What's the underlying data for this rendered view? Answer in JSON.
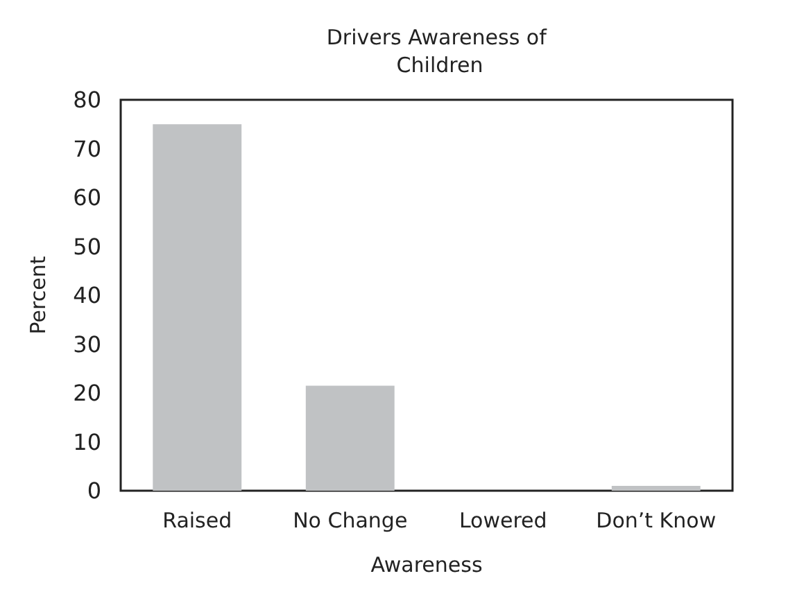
{
  "chart_data": {
    "type": "bar",
    "title": "Drivers Awareness of Children",
    "xlabel": "Awareness",
    "ylabel": "Percent",
    "categories": [
      "Raised",
      "No Change",
      "Lowered",
      "Don’t Know"
    ],
    "values": [
      75,
      21.5,
      0,
      1
    ],
    "color": "#c0c2c4",
    "ylim": [
      0,
      80
    ],
    "yticks": [
      0,
      10,
      20,
      30,
      40,
      50,
      60,
      70,
      80
    ],
    "grid": false
  }
}
